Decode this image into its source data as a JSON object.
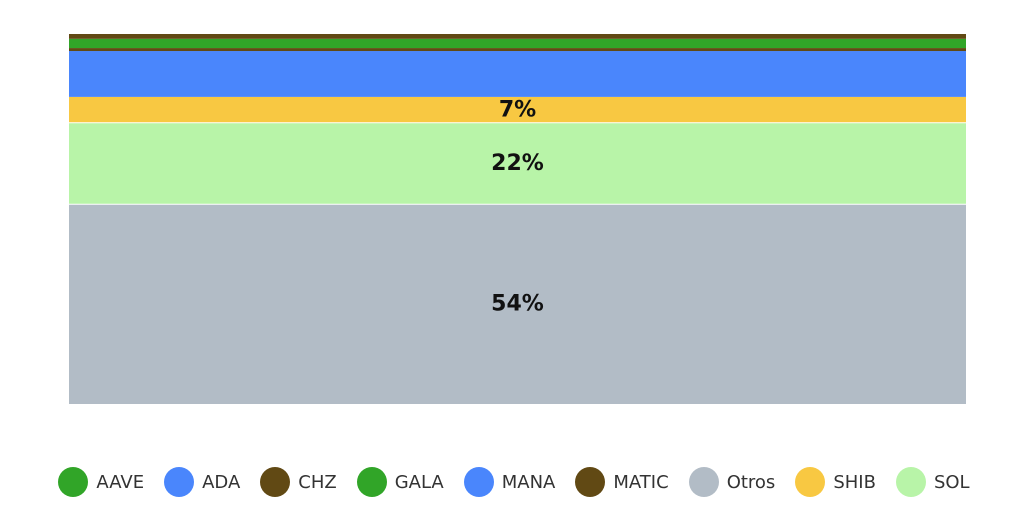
{
  "chart_data": {
    "type": "bar",
    "stacked": "percent",
    "orientation": "vertical",
    "categories": [
      ""
    ],
    "stack_order_bottom_to_top": [
      "Otros",
      "SOL",
      "SHIB",
      "MANA",
      "MATIC",
      "GALA",
      "CHZ"
    ],
    "series": [
      {
        "name": "Otros",
        "values": [
          54
        ],
        "color": "#b2bcc6",
        "label": "54%"
      },
      {
        "name": "SOL",
        "values": [
          22
        ],
        "color": "#b8f4a8",
        "label": "22%"
      },
      {
        "name": "SHIB",
        "values": [
          7
        ],
        "color": "#f8c842",
        "label": "7%"
      },
      {
        "name": "MANA",
        "values": [
          12.4
        ],
        "color": "#4a86fc",
        "label": ""
      },
      {
        "name": "MATIC",
        "values": [
          0.8
        ],
        "color": "#614914",
        "label": ""
      },
      {
        "name": "GALA",
        "values": [
          2.5
        ],
        "color": "#31a528",
        "label": ""
      },
      {
        "name": "CHZ",
        "values": [
          1.3
        ],
        "color": "#614914",
        "label": ""
      }
    ],
    "ylim": [
      0,
      100
    ],
    "grid": false,
    "legend_position": "bottom"
  },
  "legend": [
    {
      "label": "AAVE",
      "color": "#31a528"
    },
    {
      "label": "ADA",
      "color": "#4a86fc"
    },
    {
      "label": "CHZ",
      "color": "#614914"
    },
    {
      "label": "GALA",
      "color": "#31a528"
    },
    {
      "label": "MANA",
      "color": "#4a86fc"
    },
    {
      "label": "MATIC",
      "color": "#614914"
    },
    {
      "label": "Otros",
      "color": "#b2bcc6"
    },
    {
      "label": "SHIB",
      "color": "#f8c842"
    },
    {
      "label": "SOL",
      "color": "#b8f4a8"
    }
  ]
}
